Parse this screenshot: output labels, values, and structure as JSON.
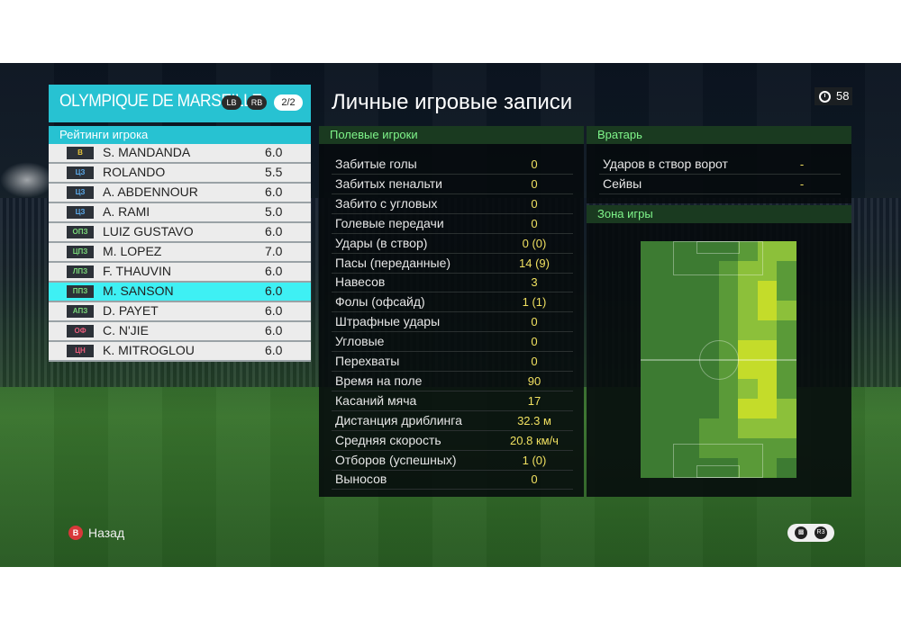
{
  "team": {
    "name": "OLYMPIQUE DE MARSEILLE",
    "lb": "LB",
    "rb": "RB",
    "page": "2/2"
  },
  "ratings_title": "Рейтинги игрока",
  "players": [
    {
      "pos": "В",
      "pos_color": "#e6c43a",
      "name": "S. MANDANDA",
      "rating": "6.0"
    },
    {
      "pos": "ЦЗ",
      "pos_color": "#5aa8e8",
      "name": "ROLANDO",
      "rating": "5.5"
    },
    {
      "pos": "ЦЗ",
      "pos_color": "#5aa8e8",
      "name": "A. ABDENNOUR",
      "rating": "6.0"
    },
    {
      "pos": "ЦЗ",
      "pos_color": "#5aa8e8",
      "name": "A. RAMI",
      "rating": "5.0"
    },
    {
      "pos": "ОПЗ",
      "pos_color": "#7ad87a",
      "name": "LUIZ GUSTAVO",
      "rating": "6.0"
    },
    {
      "pos": "ЦПЗ",
      "pos_color": "#7ad87a",
      "name": "M. LOPEZ",
      "rating": "7.0"
    },
    {
      "pos": "ЛПЗ",
      "pos_color": "#7ad87a",
      "name": "F. THAUVIN",
      "rating": "6.0"
    },
    {
      "pos": "ППЗ",
      "pos_color": "#7ad87a",
      "name": "M. SANSON",
      "rating": "6.0"
    },
    {
      "pos": "АПЗ",
      "pos_color": "#7ad87a",
      "name": "D. PAYET",
      "rating": "6.0"
    },
    {
      "pos": "ОФ",
      "pos_color": "#e85a7a",
      "name": "C. N'JIE",
      "rating": "6.0"
    },
    {
      "pos": "ЦН",
      "pos_color": "#e85a7a",
      "name": "K. MITROGLOU",
      "rating": "6.0"
    }
  ],
  "selected_index": 7,
  "title": "Личные игровые записи",
  "timer": "58",
  "field_section": "Полевые игроки",
  "field_stats": [
    {
      "label": "Забитые голы",
      "value": "0"
    },
    {
      "label": "Забитых пенальти",
      "value": "0"
    },
    {
      "label": "Забито с угловых",
      "value": "0"
    },
    {
      "label": "Голевые передачи",
      "value": "0"
    },
    {
      "label": "Удары (в створ)",
      "value": "0 (0)"
    },
    {
      "label": "Пасы (переданные)",
      "value": "14 (9)"
    },
    {
      "label": "Навесов",
      "value": "3"
    },
    {
      "label": "Фолы (офсайд)",
      "value": "1 (1)"
    },
    {
      "label": "Штрафные удары",
      "value": "0"
    },
    {
      "label": "Угловые",
      "value": "0"
    },
    {
      "label": "Перехваты",
      "value": "0"
    },
    {
      "label": "Время на поле",
      "value": "90"
    },
    {
      "label": "Касаний мяча",
      "value": "17"
    },
    {
      "label": "Дистанция дриблинга",
      "value": "32.3 м"
    },
    {
      "label": "Средняя скорость",
      "value": "20.8 км/ч"
    },
    {
      "label": "Отборов (успешных)",
      "value": "1 (0)"
    },
    {
      "label": "Выносов",
      "value": "0"
    }
  ],
  "gk_section": "Вратарь",
  "gk_stats": [
    {
      "label": "Ударов в створ ворот",
      "value": "-"
    },
    {
      "label": "Сейвы",
      "value": "-"
    }
  ],
  "zone_section": "Зона игры",
  "heatmap": {
    "cols": 8,
    "rows": 12,
    "intensity": [
      [
        0,
        0,
        0,
        0,
        0,
        1,
        2,
        2
      ],
      [
        0,
        0,
        0,
        0,
        1,
        2,
        2,
        1
      ],
      [
        0,
        0,
        0,
        0,
        1,
        2,
        3,
        1
      ],
      [
        0,
        0,
        0,
        0,
        1,
        2,
        3,
        2
      ],
      [
        0,
        0,
        0,
        0,
        1,
        2,
        2,
        1
      ],
      [
        0,
        0,
        0,
        0,
        1,
        3,
        3,
        1
      ],
      [
        0,
        0,
        0,
        0,
        1,
        3,
        3,
        1
      ],
      [
        0,
        0,
        0,
        0,
        1,
        2,
        3,
        1
      ],
      [
        0,
        0,
        0,
        0,
        1,
        3,
        3,
        2
      ],
      [
        0,
        0,
        0,
        1,
        1,
        2,
        2,
        2
      ],
      [
        0,
        0,
        0,
        1,
        1,
        1,
        1,
        1
      ],
      [
        0,
        0,
        0,
        0,
        0,
        1,
        1,
        0
      ]
    ],
    "palette": [
      "#3d7b32",
      "#5a9a38",
      "#8cc03a",
      "#c4dc2a"
    ]
  },
  "footer": {
    "back_icon": "B",
    "back_label": "Назад",
    "chat_icon": "chat-icon",
    "rs_icon": "R3"
  }
}
